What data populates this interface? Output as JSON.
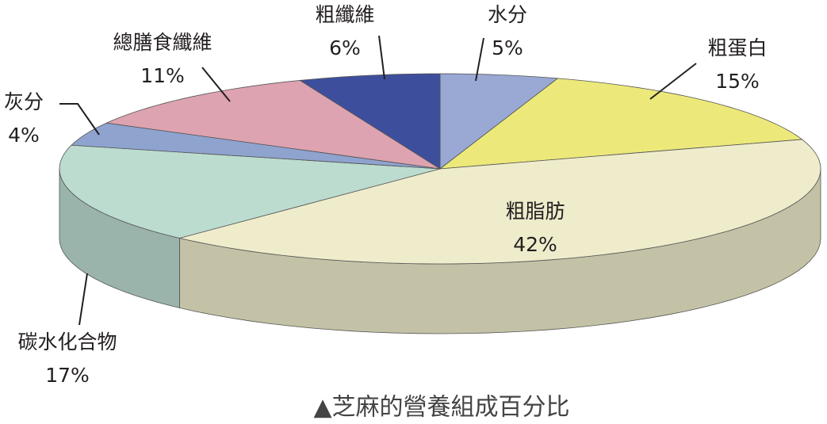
{
  "chart_data": {
    "type": "pie",
    "title": "▲芝麻的營養組成百分比",
    "categories": [
      "水分",
      "粗蛋白",
      "粗脂肪",
      "碳水化合物",
      "灰分",
      "總膳食纖維",
      "粗纖維"
    ],
    "values": [
      5,
      15,
      42,
      17,
      4,
      11,
      6
    ],
    "value_labels": [
      "5%",
      "15%",
      "42%",
      "17%",
      "4%",
      "11%",
      "6%"
    ],
    "colors": [
      "#9aa8d4",
      "#ece97a",
      "#eeeccb",
      "#bcdcd0",
      "#8fa3cf",
      "#dea3b0",
      "#3d4f9c"
    ]
  }
}
